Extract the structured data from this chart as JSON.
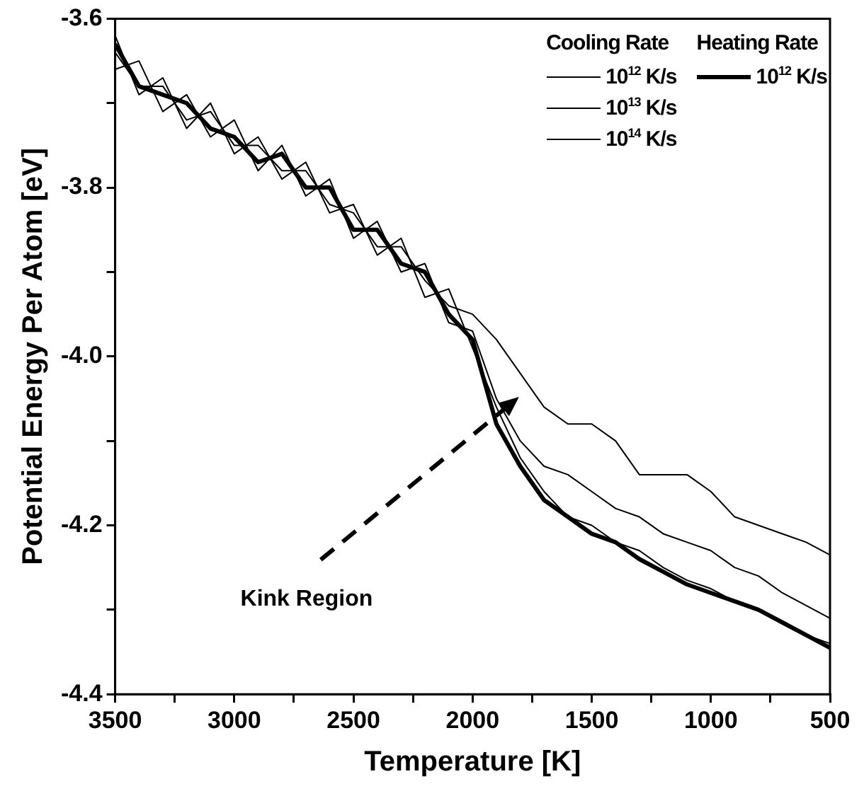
{
  "chart_data": {
    "type": "line",
    "xlabel": "Temperature [K]",
    "ylabel": "Potential Energy Per Atom [eV]",
    "legend_title": "Cooling Rate",
    "annotations": [
      "Heating Rate",
      "Kink Region"
    ],
    "x": [
      3500,
      3400,
      3300,
      3200,
      3100,
      3000,
      2900,
      2800,
      2700,
      2600,
      2500,
      2400,
      2300,
      2200,
      2100,
      2000,
      1900,
      1800,
      1700,
      1600,
      1500,
      1400,
      1300,
      1200,
      1100,
      1000,
      900,
      800,
      700,
      600,
      500
    ],
    "xlim": [
      3500,
      500
    ],
    "xticks": [
      3500,
      {
        "value": 3250,
        "label": null
      },
      3000,
      {
        "value": 2750,
        "label": null
      },
      2500,
      {
        "value": 2250,
        "label": null
      },
      2000,
      {
        "value": 1750,
        "label": null
      },
      1500,
      {
        "value": 1250,
        "label": null
      },
      1000,
      {
        "value": 750,
        "label": null
      },
      500
    ],
    "ylim": [
      -4.4,
      -3.6
    ],
    "yticks": [
      {
        "value": -4.4,
        "label": "-4.4"
      },
      {
        "value": -4.3,
        "label": null
      },
      {
        "value": -4.2,
        "label": "-4.2"
      },
      {
        "value": -4.1,
        "label": null
      },
      {
        "value": -4.0,
        "label": "-4.0"
      },
      {
        "value": -3.9,
        "label": null
      },
      {
        "value": -3.8,
        "label": "-3.8"
      },
      {
        "value": -3.7,
        "label": null
      },
      {
        "value": -3.6,
        "label": "-3.6"
      }
    ],
    "grid": false,
    "legend": "top right",
    "marker": "none",
    "line_style": "solid",
    "series": [
      {
        "name": "10$^{12}$ K/s",
        "color": "#000000",
        "values": [
          -3.62,
          -3.69,
          -3.67,
          -3.73,
          -3.7,
          -3.76,
          -3.74,
          -3.79,
          -3.77,
          -3.83,
          -3.82,
          -3.88,
          -3.86,
          -3.93,
          -3.92,
          -3.99,
          -4.06,
          -4.12,
          -4.16,
          -4.19,
          -4.2,
          -4.22,
          -4.23,
          -4.25,
          -4.265,
          -4.275,
          -4.29,
          -4.3,
          -4.315,
          -4.33,
          -4.34
        ]
      },
      {
        "name": "10$^{13}$ K/s",
        "color": "#000000",
        "values": [
          -3.66,
          -3.65,
          -3.71,
          -3.69,
          -3.74,
          -3.72,
          -3.78,
          -3.75,
          -3.81,
          -3.79,
          -3.86,
          -3.84,
          -3.9,
          -3.89,
          -3.96,
          -3.97,
          -4.05,
          -4.1,
          -4.13,
          -4.14,
          -4.16,
          -4.18,
          -4.19,
          -4.21,
          -4.22,
          -4.23,
          -4.25,
          -4.26,
          -4.28,
          -4.295,
          -4.31
        ]
      },
      {
        "name": "10$^{14}$ K/s",
        "color": "#000000",
        "values": [
          -3.64,
          -3.68,
          -3.68,
          -3.72,
          -3.71,
          -3.75,
          -3.75,
          -3.78,
          -3.78,
          -3.82,
          -3.83,
          -3.87,
          -3.87,
          -3.91,
          -3.94,
          -3.95,
          -3.98,
          -4.02,
          -4.06,
          -4.08,
          -4.08,
          -4.1,
          -4.14,
          -4.14,
          -4.14,
          -4.16,
          -4.19,
          -4.2,
          -4.21,
          -4.22,
          -4.235
        ]
      },
      {
        "name": "10$^{12}$ K/s",
        "color": "#000000",
        "values": [
          -3.63,
          -3.68,
          -3.69,
          -3.7,
          -3.73,
          -3.74,
          -3.77,
          -3.76,
          -3.8,
          -3.8,
          -3.85,
          -3.85,
          -3.89,
          -3.9,
          -3.95,
          -3.98,
          -4.08,
          -4.13,
          -4.17,
          -4.19,
          -4.21,
          -4.22,
          -4.24,
          -4.255,
          -4.27,
          -4.28,
          -4.29,
          -4.3,
          -4.315,
          -4.33,
          -4.345
        ]
      }
    ]
  }
}
